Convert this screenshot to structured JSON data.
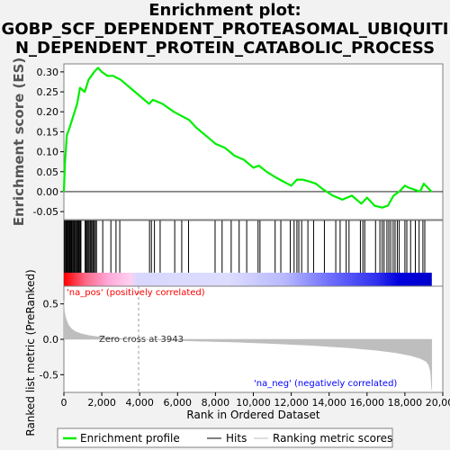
{
  "title": "Enrichment plot:\nGOBP_SCF_DEPENDENT_PROTEASOMAL_UBIQUITI\nN_DEPENDENT_PROTEIN_CATABOLIC_PROCESS",
  "colors": {
    "es_line": "#00ee00",
    "hits": "#000000",
    "metric_fill": "#bebebe",
    "pos_label": "#ff0000",
    "neg_label": "#0000ff",
    "zero_cross": "#9a9a9a",
    "bar_pos": "#ff0000",
    "bar_neg": "#0000ff"
  },
  "labels": {
    "pos": "'na_pos' (positively correlated)",
    "neg": "'na_neg' (negatively correlated)",
    "zero_cross": "Zero cross at 3943"
  },
  "legend": {
    "es": "Enrichment profile",
    "hits": "Hits",
    "metric": "Ranking metric scores"
  },
  "chart_data": [
    {
      "type": "line",
      "ylabel": "Enrichment score (ES)",
      "xlim": [
        0,
        20000
      ],
      "ylim": [
        -0.07,
        0.32
      ],
      "yticks": [
        "-0.05",
        "0.00",
        "0.05",
        "0.10",
        "0.15",
        "0.20",
        "0.25",
        "0.30"
      ],
      "ytick_values": [
        -0.05,
        0.0,
        0.05,
        0.1,
        0.15,
        0.2,
        0.25,
        0.3
      ],
      "series": [
        {
          "x": [
            0,
            50,
            150,
            300,
            500,
            700,
            850,
            1100,
            1300,
            1600,
            1800,
            2000,
            2300,
            2600,
            3000,
            3500,
            4500,
            4700,
            5200,
            5800,
            6200,
            6600,
            7000,
            7500,
            8000,
            8500,
            9000,
            9500,
            10000,
            10300,
            10700,
            11200,
            11600,
            12000,
            12300,
            12600,
            13000,
            13300,
            13700,
            14200,
            14700,
            15200,
            15700,
            16000,
            16400,
            16800,
            17100,
            17400,
            17700,
            18000,
            18200,
            18500,
            18800,
            19000,
            19200,
            19400
          ],
          "y": [
            0.0,
            0.07,
            0.14,
            0.16,
            0.19,
            0.22,
            0.26,
            0.25,
            0.28,
            0.3,
            0.31,
            0.3,
            0.29,
            0.29,
            0.28,
            0.26,
            0.22,
            0.23,
            0.22,
            0.2,
            0.19,
            0.18,
            0.16,
            0.14,
            0.12,
            0.11,
            0.09,
            0.08,
            0.06,
            0.065,
            0.05,
            0.035,
            0.025,
            0.015,
            0.03,
            0.03,
            0.025,
            0.02,
            0.005,
            -0.01,
            -0.02,
            -0.01,
            -0.03,
            -0.015,
            -0.035,
            -0.04,
            -0.035,
            -0.01,
            0.0,
            0.015,
            0.01,
            0.005,
            0.0,
            0.02,
            0.01,
            0.0
          ]
        }
      ]
    },
    {
      "type": "scatter",
      "name_hidden": "hits",
      "hit_ranks": [
        30,
        80,
        120,
        160,
        200,
        240,
        290,
        330,
        380,
        420,
        470,
        520,
        560,
        610,
        660,
        710,
        760,
        810,
        860,
        900,
        1120,
        1170,
        1220,
        1270,
        1320,
        1380,
        1430,
        1480,
        1540,
        1600,
        1660,
        1720,
        2050,
        2480,
        2750,
        2950,
        4520,
        4620,
        4780,
        5080,
        5850,
        6220,
        6580,
        7980,
        8350,
        8830,
        9250,
        9650,
        10250,
        10350,
        11150,
        11450,
        11950,
        12150,
        12300,
        12400,
        12550,
        12880,
        13180,
        13750,
        14350,
        14580,
        14900,
        15050,
        15650,
        15780,
        15880,
        16450,
        16680,
        16800,
        16900,
        17050,
        17150,
        17250,
        17380,
        17480,
        17600,
        17700,
        18000,
        18100,
        18300,
        18550,
        18750,
        18950,
        19050
      ]
    },
    {
      "type": "area",
      "xlabel": "Rank in Ordered Dataset",
      "ylabel": "Ranked list metric (PreRanked)",
      "xlim": [
        0,
        20000
      ],
      "ylim": [
        -0.75,
        0.75
      ],
      "xticks": [
        "0",
        "2,000",
        "4,000",
        "6,000",
        "8,000",
        "10,000",
        "12,000",
        "14,000",
        "16,000",
        "18,000",
        "20,000"
      ],
      "xtick_values": [
        0,
        2000,
        4000,
        6000,
        8000,
        10000,
        12000,
        14000,
        16000,
        18000,
        20000
      ],
      "yticks": [
        "-0.5",
        "0.0",
        "0.5"
      ],
      "ytick_values": [
        -0.5,
        0.0,
        0.5
      ],
      "zero_cross": 3943,
      "series": [
        {
          "x": [
            0,
            30,
            80,
            150,
            250,
            400,
            600,
            900,
            1300,
            1800,
            2500,
            3200,
            3943,
            5000,
            7000,
            9000,
            11000,
            13000,
            15000,
            16500,
            17500,
            18300,
            18800,
            19100,
            19250,
            19350,
            19420
          ],
          "y": [
            0.55,
            0.4,
            0.32,
            0.26,
            0.2,
            0.15,
            0.11,
            0.08,
            0.055,
            0.035,
            0.02,
            0.01,
            0.0,
            -0.01,
            -0.025,
            -0.04,
            -0.06,
            -0.085,
            -0.12,
            -0.155,
            -0.19,
            -0.23,
            -0.27,
            -0.31,
            -0.36,
            -0.45,
            -0.72
          ]
        }
      ]
    }
  ]
}
